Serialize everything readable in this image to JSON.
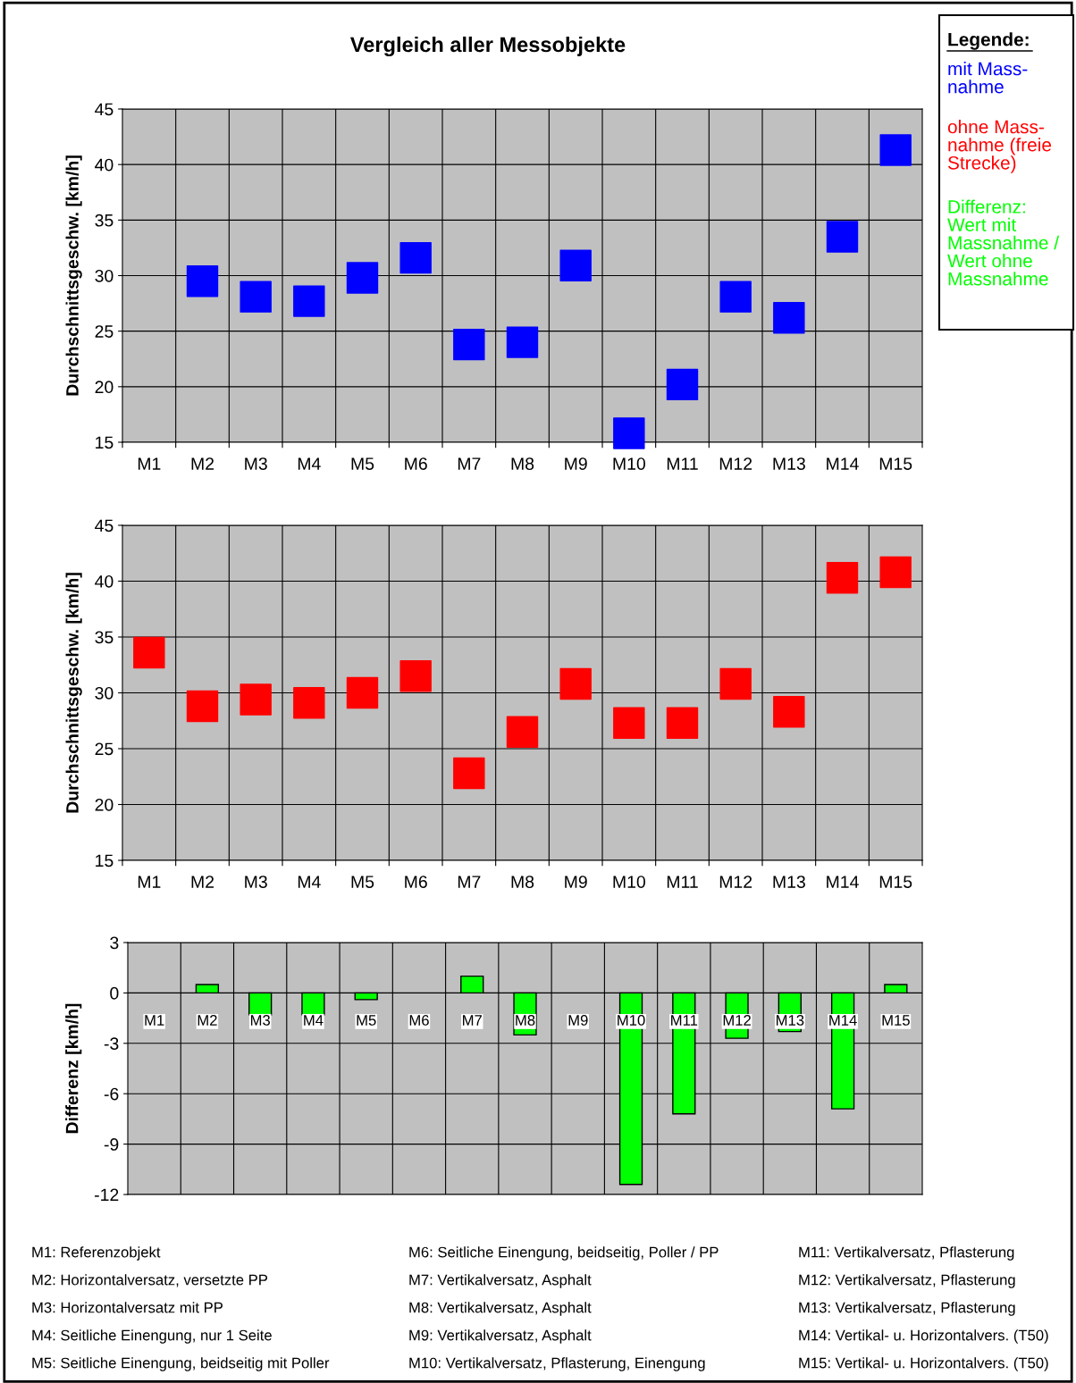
{
  "chart_data": [
    {
      "type": "scatter",
      "title": "Vergleich aller Messobjekte",
      "ylabel": "Durchschnittsgeschw. [km/h]",
      "categories": [
        "M1",
        "M2",
        "M3",
        "M4",
        "M5",
        "M6",
        "M7",
        "M8",
        "M9",
        "M10",
        "M11",
        "M12",
        "M13",
        "M14",
        "M15"
      ],
      "series": [
        {
          "name": "mit Mass-\nnahme",
          "color": "#0000ff",
          "values": [
            null,
            29.5,
            28.1,
            27.7,
            29.8,
            31.6,
            23.8,
            24.0,
            30.9,
            15.8,
            20.2,
            28.1,
            26.2,
            33.5,
            41.3
          ]
        }
      ],
      "ylim": [
        15,
        45
      ],
      "yticks": [
        15,
        20,
        25,
        30,
        35,
        40,
        45
      ],
      "grid": true,
      "marker": "square",
      "legend": "top right",
      "legend_title": "Legende:"
    },
    {
      "type": "scatter",
      "ylabel": "Durchschnittsgeschw. [km/h]",
      "categories": [
        "M1",
        "M2",
        "M3",
        "M4",
        "M5",
        "M6",
        "M7",
        "M8",
        "M9",
        "M10",
        "M11",
        "M12",
        "M13",
        "M14",
        "M15"
      ],
      "series": [
        {
          "name": "ohne Mass-\nnahme (freie\nStrecke)",
          "color": "#ff0000",
          "values": [
            33.6,
            28.8,
            29.4,
            29.1,
            30.0,
            31.5,
            22.8,
            26.5,
            30.8,
            27.3,
            27.3,
            30.8,
            28.3,
            40.3,
            40.8
          ]
        }
      ],
      "ylim": [
        15,
        45
      ],
      "yticks": [
        15,
        20,
        25,
        30,
        35,
        40,
        45
      ],
      "grid": true,
      "marker": "square",
      "legend": "top right"
    },
    {
      "type": "bar",
      "ylabel": "Differenz [km/h]",
      "categories": [
        "M1",
        "M2",
        "M3",
        "M4",
        "M5",
        "M6",
        "M7",
        "M8",
        "M9",
        "M10",
        "M11",
        "M12",
        "M13",
        "M14",
        "M15"
      ],
      "series": [
        {
          "name": "Differenz:\nWert mit\nMassnahme /\nWert ohne\nMassnahme",
          "color": "#00ff00",
          "values": [
            null,
            0.5,
            -1.3,
            -1.3,
            -0.4,
            null,
            1.0,
            -2.5,
            null,
            -11.4,
            -7.2,
            -2.7,
            -2.3,
            -6.9,
            0.5
          ]
        }
      ],
      "ylim": [
        -12,
        3
      ],
      "yticks": [
        -12,
        -9,
        -6,
        -3,
        0,
        3
      ],
      "grid": true,
      "legend": "top right",
      "annotations": [
        "M1: Referenzobjekt",
        "M2: Horizontalversatz, versetzte PP",
        "M3: Horizontalversatz mit PP",
        "M4: Seitliche Einengung, nur 1 Seite",
        "M5: Seitliche Einengung, beidseitig mit Poller",
        "M6: Seitliche Einengung, beidseitig, Poller / PP",
        "M7: Vertikalversatz, Asphalt",
        "M8: Vertikalversatz, Asphalt",
        "M9: Vertikalversatz, Asphalt",
        "M10: Vertikalversatz, Pflasterung, Einengung",
        "M11: Vertikalversatz, Pflasterung",
        "M12: Vertikalversatz, Pflasterung",
        "M13: Vertikalversatz, Pflasterung",
        "M14: Vertikal- u. Horizontalvers. (T50)",
        "M15: Vertikal- u. Horizontalvers. (T50)"
      ]
    }
  ]
}
